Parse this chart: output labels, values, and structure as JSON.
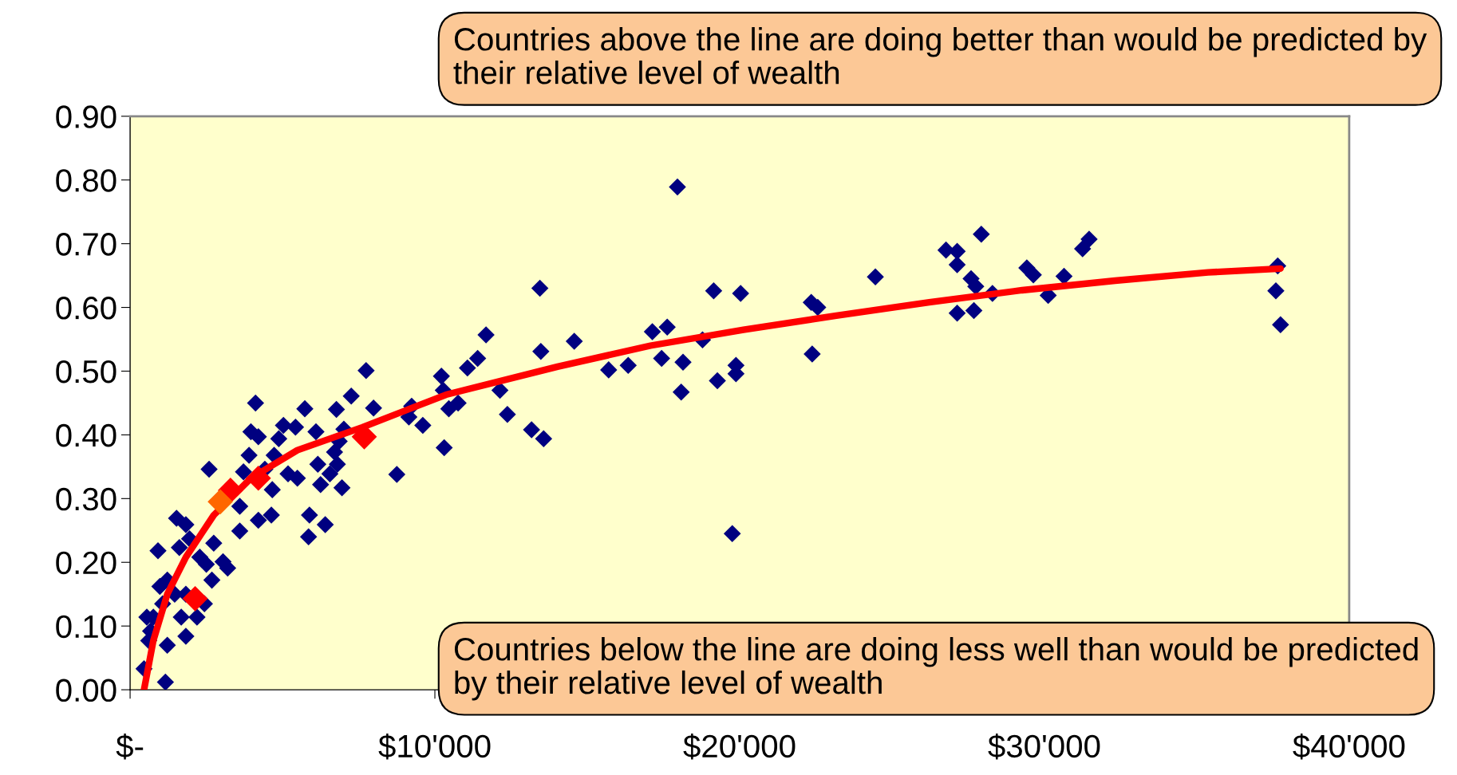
{
  "chart_data": {
    "type": "scatter",
    "annotations": [
      "Countries above the line are doing better than would be predicted by their relative level of wealth",
      "Countries below the line are doing less well than would be predicted by their relative level of wealth"
    ],
    "xlim": [
      0,
      40000
    ],
    "ylim": [
      0,
      0.9
    ],
    "xticks": [
      {
        "value": 0,
        "label": "$-"
      },
      {
        "value": 10000,
        "label": "$10'000"
      },
      {
        "value": 20000,
        "label": "$20'000"
      },
      {
        "value": 30000,
        "label": "$30'000"
      },
      {
        "value": 40000,
        "label": "$40'000"
      }
    ],
    "yticks": [
      {
        "value": 0,
        "label": "0.00"
      },
      {
        "value": 0.1,
        "label": "0.10"
      },
      {
        "value": 0.2,
        "label": "0.20"
      },
      {
        "value": 0.3,
        "label": "0.30"
      },
      {
        "value": 0.4,
        "label": "0.40"
      },
      {
        "value": 0.5,
        "label": "0.50"
      },
      {
        "value": 0.6,
        "label": "0.60"
      },
      {
        "value": 0.7,
        "label": "0.70"
      },
      {
        "value": 0.8,
        "label": "0.80"
      },
      {
        "value": 0.9,
        "label": "0.90"
      }
    ],
    "grid": false,
    "legend": false,
    "series": [
      {
        "marker": "diamond",
        "color": "#000080",
        "x": [
          37655,
          37594,
          37747,
          31466,
          31252,
          30643,
          30124,
          29423,
          29637,
          27929,
          26771,
          27137,
          27137,
          27594,
          27747,
          28296,
          27137,
          27686,
          24453,
          22349,
          22562,
          22380,
          17959,
          19148,
          20032,
          19270,
          19880,
          19880,
          19758,
          17623,
          17136,
          17440,
          18142,
          18081,
          18782,
          14574,
          16343,
          15702,
          13446,
          13477,
          13172,
          13568,
          11678,
          11403,
          11068,
          12135,
          12379,
          10214,
          10275,
          10458,
          10763,
          10306,
          9604,
          9238,
          8751,
          9147,
          7988,
          7744,
          7256,
          6769,
          7013,
          6861,
          6708,
          6800,
          6952,
          6555,
          6098,
          6159,
          6250,
          6403,
          5885,
          5855,
          5733,
          5427,
          5031,
          4878,
          5183,
          5488,
          4726,
          4421,
          4665,
          4635,
          4208,
          4116,
          3964,
          4208,
          3903,
          3720,
          3598,
          2592,
          3598,
          3049,
          3201,
          2744,
          2500,
          2683,
          2439,
          2195,
          1829,
          1524,
          1829,
          1616,
          1951,
          2287,
          1220,
          915,
          1067,
          762,
          610,
          1220,
          1159,
          457,
          549,
          671,
          1829,
          1463,
          1677,
          976
        ],
        "values": [
          0.665,
          0.626,
          0.573,
          0.707,
          0.692,
          0.649,
          0.619,
          0.662,
          0.651,
          0.715,
          0.69,
          0.688,
          0.667,
          0.645,
          0.633,
          0.622,
          0.591,
          0.595,
          0.648,
          0.608,
          0.6,
          0.527,
          0.789,
          0.626,
          0.622,
          0.485,
          0.509,
          0.496,
          0.245,
          0.569,
          0.562,
          0.52,
          0.514,
          0.467,
          0.549,
          0.547,
          0.509,
          0.502,
          0.63,
          0.531,
          0.408,
          0.394,
          0.557,
          0.52,
          0.505,
          0.47,
          0.432,
          0.492,
          0.47,
          0.441,
          0.45,
          0.38,
          0.415,
          0.445,
          0.338,
          0.428,
          0.442,
          0.501,
          0.461,
          0.44,
          0.409,
          0.39,
          0.373,
          0.354,
          0.317,
          0.339,
          0.405,
          0.354,
          0.322,
          0.259,
          0.274,
          0.24,
          0.441,
          0.412,
          0.415,
          0.394,
          0.339,
          0.332,
          0.368,
          0.346,
          0.314,
          0.274,
          0.266,
          0.45,
          0.405,
          0.397,
          0.368,
          0.342,
          0.249,
          0.346,
          0.288,
          0.201,
          0.191,
          0.23,
          0.197,
          0.172,
          0.135,
          0.114,
          0.084,
          0.269,
          0.259,
          0.223,
          0.237,
          0.208,
          0.172,
          0.218,
          0.135,
          0.114,
          0.077,
          0.07,
          0.012,
          0.033,
          0.114,
          0.092,
          0.15,
          0.15,
          0.114,
          0.162
        ]
      },
      {
        "type": "line",
        "marker": "none",
        "line_style": "solid",
        "color": "#ff0000",
        "x": [
          457,
          762,
          1220,
          1829,
          2744,
          3964,
          5488,
          7622,
          10367,
          14025,
          17074,
          20123,
          23172,
          26220,
          29269,
          32318,
          35367,
          37747
        ],
        "values": [
          0.0,
          0.077,
          0.15,
          0.208,
          0.274,
          0.332,
          0.376,
          0.412,
          0.463,
          0.507,
          0.54,
          0.565,
          0.587,
          0.608,
          0.627,
          0.642,
          0.655,
          0.661
        ]
      },
      {
        "marker": "diamond",
        "colors": [
          "#ff0000",
          "#ff0000",
          "#ff0000",
          "#ff0000",
          "#ff0000",
          "#ff6600"
        ],
        "x": [
          2134,
          3506,
          4208,
          7683,
          3293,
          2958
        ],
        "values": [
          0.143,
          null,
          0.332,
          0.397,
          0.313,
          0.295
        ]
      }
    ]
  }
}
